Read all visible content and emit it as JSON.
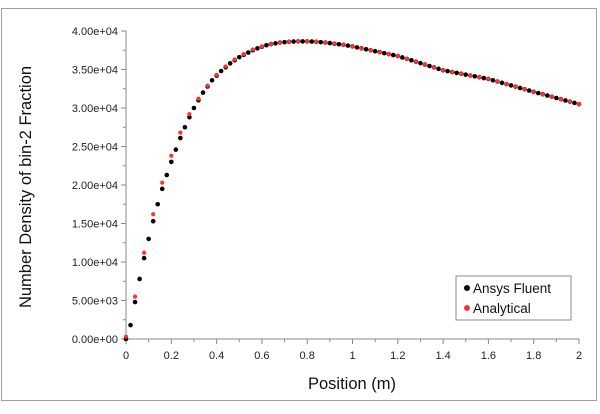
{
  "chart_data": {
    "type": "scatter",
    "xlabel": "Position (m)",
    "ylabel": "Number Density of bin-2 Fraction",
    "xlim": [
      0,
      2
    ],
    "ylim": [
      0,
      40000
    ],
    "x_ticks": [
      0,
      0.2,
      0.4,
      0.6,
      0.8,
      1,
      1.2,
      1.4,
      1.6,
      1.8,
      2
    ],
    "x_tick_labels": [
      "0",
      "0.2",
      "0.4",
      "0.6",
      "0.8",
      "1",
      "1.2",
      "1.4",
      "1.6",
      "1.8",
      "2"
    ],
    "y_ticks": [
      0,
      5000,
      10000,
      15000,
      20000,
      25000,
      30000,
      35000,
      40000
    ],
    "y_tick_labels": [
      "0.00e+00",
      "5.00e+03",
      "1.00e+04",
      "1.50e+04",
      "2.00e+04",
      "2.50e+04",
      "3.00e+04",
      "3.50e+04",
      "4.00e+04"
    ],
    "grid": false,
    "legend_position": "bottom-right",
    "series": [
      {
        "name": "Ansys Fluent",
        "color": "#000000",
        "x": [
          0,
          0.02,
          0.04,
          0.06,
          0.08,
          0.1,
          0.12,
          0.14,
          0.16,
          0.18,
          0.2,
          0.22,
          0.24,
          0.26,
          0.28,
          0.3,
          0.32,
          0.34,
          0.36,
          0.38,
          0.4,
          0.42,
          0.44,
          0.46,
          0.48,
          0.5,
          0.52,
          0.54,
          0.56,
          0.58,
          0.6,
          0.62,
          0.64,
          0.66,
          0.68,
          0.7,
          0.72,
          0.74,
          0.76,
          0.78,
          0.8,
          0.82,
          0.84,
          0.86,
          0.88,
          0.9,
          0.92,
          0.94,
          0.96,
          0.98,
          1,
          1.02,
          1.04,
          1.06,
          1.08,
          1.1,
          1.12,
          1.14,
          1.16,
          1.18,
          1.2,
          1.22,
          1.24,
          1.26,
          1.28,
          1.3,
          1.32,
          1.34,
          1.36,
          1.38,
          1.4,
          1.42,
          1.44,
          1.46,
          1.48,
          1.5,
          1.52,
          1.54,
          1.56,
          1.58,
          1.6,
          1.62,
          1.64,
          1.66,
          1.68,
          1.7,
          1.72,
          1.74,
          1.76,
          1.78,
          1.8,
          1.82,
          1.84,
          1.86,
          1.88,
          1.9,
          1.92,
          1.94,
          1.96,
          1.98,
          2
        ],
        "y": [
          0,
          1800,
          4800,
          7800,
          10500,
          13000,
          15300,
          17500,
          19500,
          21300,
          23000,
          24600,
          26100,
          27500,
          28800,
          30000,
          31000,
          32000,
          32800,
          33600,
          34200,
          34800,
          35300,
          35800,
          36200,
          36600,
          36900,
          37200,
          37500,
          37750,
          37950,
          38150,
          38300,
          38400,
          38500,
          38550,
          38600,
          38630,
          38650,
          38650,
          38650,
          38630,
          38600,
          38550,
          38500,
          38430,
          38350,
          38280,
          38200,
          38100,
          38000,
          37875,
          37750,
          37625,
          37500,
          37375,
          37250,
          37125,
          37000,
          36875,
          36750,
          36565,
          36380,
          36195,
          36010,
          35825,
          35640,
          35455,
          35270,
          35085,
          34900,
          34785,
          34670,
          34560,
          34450,
          34335,
          34220,
          34110,
          34000,
          33885,
          33770,
          33605,
          33440,
          33270,
          33100,
          32935,
          32770,
          32600,
          32430,
          32265,
          32100,
          31940,
          31780,
          31620,
          31460,
          31300,
          31140,
          30980,
          30820,
          30660,
          30500
        ]
      },
      {
        "name": "Analytical",
        "color": "#ff3030",
        "x": [
          0,
          0.04,
          0.08,
          0.12,
          0.16,
          0.2,
          0.24,
          0.28,
          0.32,
          0.36,
          0.4,
          0.44,
          0.48,
          0.52,
          0.56,
          0.6,
          0.64,
          0.68,
          0.72,
          0.76,
          0.8,
          0.84,
          0.88,
          0.92,
          0.96,
          1,
          1.04,
          1.08,
          1.12,
          1.16,
          1.2,
          1.24,
          1.28,
          1.32,
          1.36,
          1.4,
          1.44,
          1.48,
          1.52,
          1.56,
          1.6,
          1.64,
          1.68,
          1.72,
          1.76,
          1.8,
          1.84,
          1.88,
          1.92,
          1.96,
          2
        ],
        "y": [
          300,
          5500,
          11200,
          16200,
          20300,
          23800,
          26800,
          29200,
          31200,
          32900,
          34300,
          35400,
          36300,
          37000,
          37600,
          38000,
          38300,
          38500,
          38600,
          38650,
          38650,
          38600,
          38500,
          38350,
          38200,
          38000,
          37750,
          37500,
          37250,
          37000,
          36750,
          36380,
          36010,
          35640,
          35270,
          34900,
          34670,
          34450,
          34220,
          34000,
          33770,
          33440,
          33100,
          32770,
          32430,
          32100,
          31780,
          31460,
          31140,
          30820,
          30500
        ]
      }
    ]
  }
}
